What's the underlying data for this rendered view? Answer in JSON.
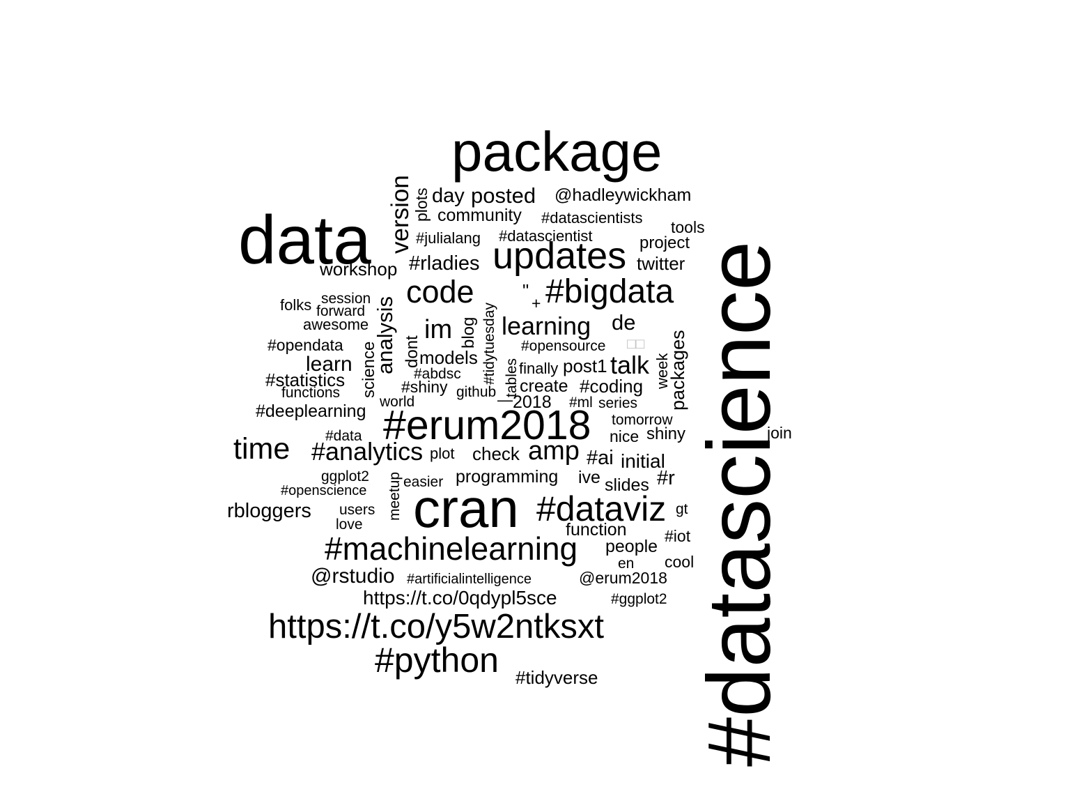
{
  "colors": {
    "text": "#000000",
    "background": "#ffffff",
    "faint": "#bbbbbb"
  },
  "words": [
    "package",
    "data",
    "#datascience",
    "cran",
    "#erum2018",
    "updates",
    "#bigdata",
    "https://t.co/y5w2ntksxt",
    "#python",
    "#machinelearning",
    "#dataviz",
    "time",
    "#analytics",
    "code",
    "version",
    "learning",
    "im",
    "amp",
    "analysis",
    "talk",
    "posted",
    "day",
    "@hadleywickham",
    "community",
    "#datascientists",
    "plots",
    "#julialang",
    "#datascientist",
    "tools",
    "project",
    "twitter",
    "workshop",
    "#rladies",
    "folks",
    "session",
    "forward",
    "awesome",
    "de",
    "blog",
    "#tidytuesday",
    "dont",
    "#opendata",
    "science",
    "learn",
    "models",
    "#opensource",
    "finally",
    "post1",
    "week",
    "packages",
    "#statistics",
    "functions",
    "#abdsc",
    "#shiny",
    "tables",
    "create",
    "#coding",
    "github",
    "world",
    "2018",
    "#ml",
    "series",
    "#deeplearning",
    "tomorrow",
    "#data",
    "nice",
    "shiny",
    "join",
    "plot",
    "check",
    "#ai",
    "initial",
    "ggplot2",
    "meetup",
    "easier",
    "programming",
    "ive",
    "slides",
    "#r",
    "#openscience",
    "rbloggers",
    "users",
    "love",
    "gt",
    "function",
    "#iot",
    "people",
    "en",
    "cool",
    "@rstudio",
    "#artificialintelligence",
    "@erum2018",
    "https://t.co/0qdypl5sce",
    "#ggplot2",
    "#tidyverse",
    "\"",
    "+",
    "—",
    "□□"
  ]
}
